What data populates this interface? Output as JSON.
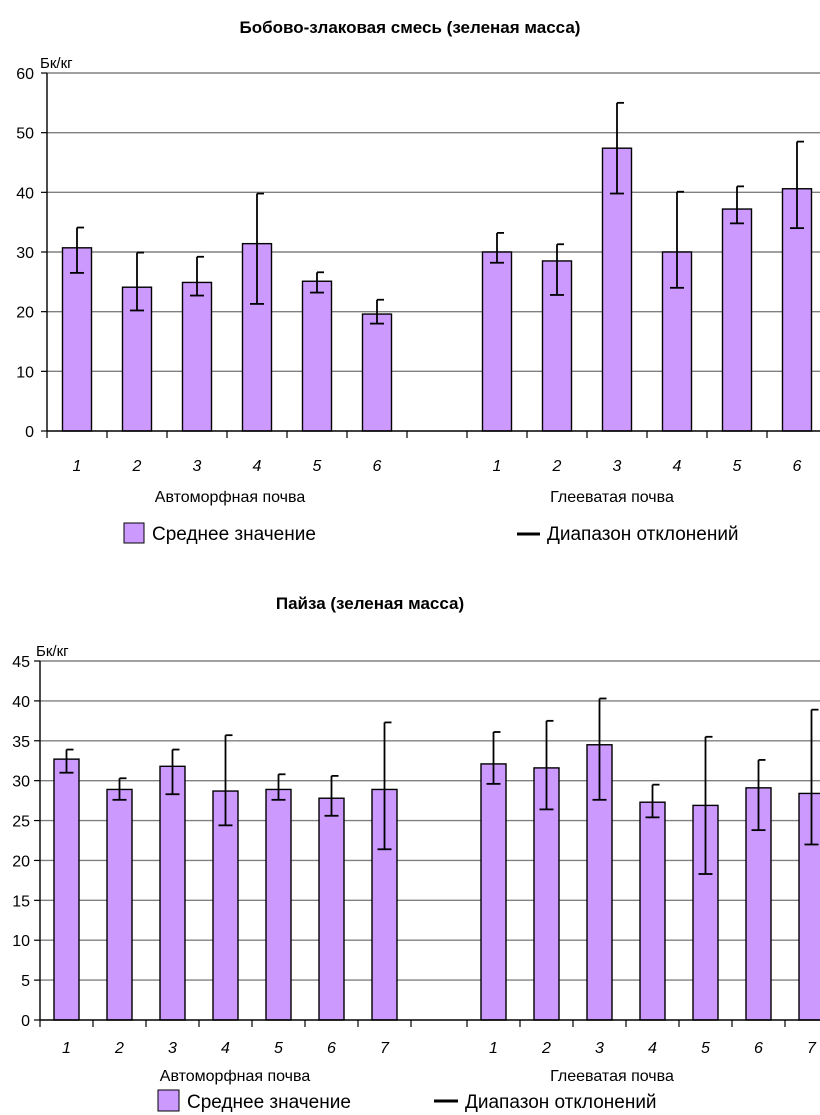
{
  "colors": {
    "bar_fill": "#cc99ff",
    "bar_stroke": "#000000",
    "grid": "#808080"
  },
  "chart_data": [
    {
      "type": "bar",
      "title": "Бобово-злаковая смесь (зеленая масса)",
      "ylabel": "Бк/кг",
      "ylim": [
        0,
        60
      ],
      "yticks": [
        0,
        10,
        20,
        30,
        40,
        50,
        60
      ],
      "grid": true,
      "groups": [
        {
          "label": "Автоморфная почва",
          "categories": [
            "1",
            "2",
            "3",
            "4",
            "5",
            "6"
          ],
          "values": [
            30.7,
            24.1,
            24.9,
            31.4,
            25.1,
            19.6
          ],
          "err_low": [
            26.5,
            20.2,
            22.7,
            21.3,
            23.2,
            18.0
          ],
          "err_high": [
            34.1,
            29.9,
            29.2,
            39.8,
            26.6,
            22.0
          ]
        },
        {
          "label": "Глееватая почва",
          "categories": [
            "1",
            "2",
            "3",
            "4",
            "5",
            "6"
          ],
          "values": [
            30.0,
            28.5,
            47.4,
            30.0,
            37.2,
            40.6
          ],
          "err_low": [
            28.2,
            22.8,
            39.8,
            24.0,
            34.8,
            34.0
          ],
          "err_high": [
            33.2,
            31.3,
            55.0,
            40.1,
            41.0,
            48.5
          ]
        }
      ],
      "legend": {
        "bar": "Среднее значение",
        "line": "Диапазон отклонений"
      }
    },
    {
      "type": "bar",
      "title": "Пайза (зеленая масса)",
      "ylabel": "Бк/кг",
      "ylim": [
        0,
        45
      ],
      "yticks": [
        0,
        5,
        10,
        15,
        20,
        25,
        30,
        35,
        40,
        45
      ],
      "grid": true,
      "groups": [
        {
          "label": "Автоморфная почва",
          "categories": [
            "1",
            "2",
            "3",
            "4",
            "5",
            "6",
            "7"
          ],
          "values": [
            32.7,
            28.9,
            31.8,
            28.7,
            28.9,
            27.8,
            28.9
          ],
          "err_low": [
            31.0,
            27.6,
            28.3,
            24.4,
            27.6,
            25.6,
            21.4
          ],
          "err_high": [
            33.9,
            30.3,
            33.9,
            35.7,
            30.8,
            30.6,
            37.3
          ]
        },
        {
          "label": "Глееватая почва",
          "categories": [
            "1",
            "2",
            "3",
            "4",
            "5",
            "6",
            "7"
          ],
          "values": [
            32.1,
            31.6,
            34.5,
            27.3,
            26.9,
            29.1,
            28.4
          ],
          "err_low": [
            29.6,
            26.4,
            27.6,
            25.4,
            18.3,
            23.8,
            22.0
          ],
          "err_high": [
            36.1,
            37.5,
            40.3,
            29.5,
            35.5,
            32.6,
            38.9
          ]
        }
      ],
      "legend": {
        "bar": "Среднее значение",
        "line": "Диапазон отклонений"
      }
    }
  ]
}
